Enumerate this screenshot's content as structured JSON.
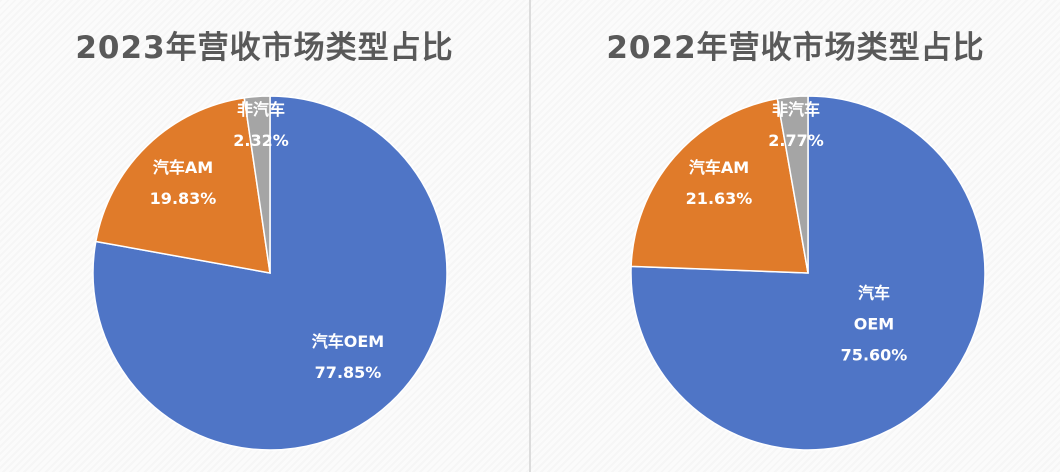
{
  "chart_data": [
    {
      "type": "pie",
      "title": "2023年营收市场类型占比",
      "slices": [
        {
          "label": "汽车OEM",
          "value": 77.85,
          "value_label": "77.85%",
          "color": "#4f75c6"
        },
        {
          "label": "汽车AM",
          "value": 19.83,
          "value_label": "19.83%",
          "color": "#e07b2a"
        },
        {
          "label": "非汽车",
          "value": 2.32,
          "value_label": "2.32%",
          "color": "#a5a5a5"
        }
      ]
    },
    {
      "type": "pie",
      "title": "2022年营收市场类型占比",
      "slices": [
        {
          "label": "汽车OEM",
          "label_lines": [
            "汽车",
            "OEM"
          ],
          "value": 75.6,
          "value_label": "75.60%",
          "color": "#4f75c6"
        },
        {
          "label": "汽车AM",
          "value": 21.63,
          "value_label": "21.63%",
          "color": "#e07b2a"
        },
        {
          "label": "非汽车",
          "value": 2.77,
          "value_label": "2.77%",
          "color": "#a5a5a5"
        }
      ]
    }
  ]
}
